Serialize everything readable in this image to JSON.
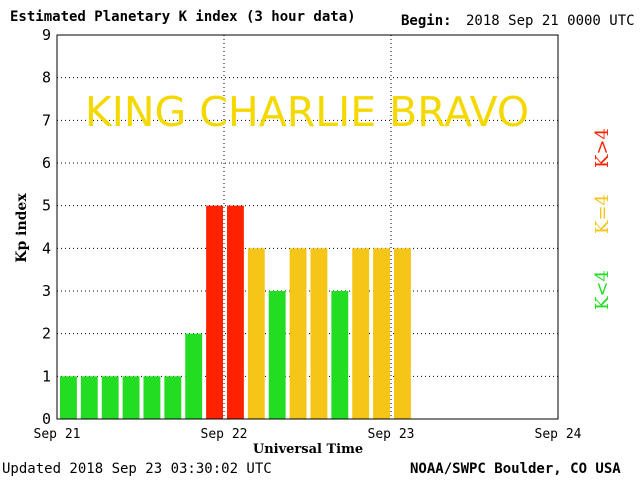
{
  "header": {
    "title": "Estimated Planetary K index (3 hour data)",
    "begin_label": "Begin:",
    "begin_value": "2018 Sep 21 0000 UTC"
  },
  "footer": {
    "updated": "Updated 2018 Sep 23 03:30:02 UTC",
    "source": "NOAA/SWPC Boulder, CO USA"
  },
  "overlay_text": "KING CHARLIE BRAVO",
  "colors": {
    "low": "#22dd22",
    "moderate": "#f5c518",
    "storm": "#ff2200",
    "overlay": "#f5d800"
  },
  "chart_data": {
    "type": "bar",
    "title": "Estimated Planetary K index (3 hour data)",
    "xlabel": "Universal Time",
    "ylabel": "Kp index",
    "ylim": [
      0,
      9
    ],
    "yticks": [
      "0",
      "1",
      "2",
      "3",
      "4",
      "5",
      "6",
      "7",
      "8",
      "9"
    ],
    "x_tick_labels": [
      "Sep 21",
      "Sep 22",
      "Sep 23",
      "Sep 24"
    ],
    "bars_per_day": 8,
    "values": [
      1,
      1,
      1,
      1,
      1,
      1,
      2,
      5,
      5,
      4,
      3,
      4,
      4,
      3,
      4,
      4,
      4
    ],
    "legend": [
      "K<4",
      "K=4",
      "K>4"
    ],
    "legend_placement": "right",
    "grid": "dotted"
  }
}
